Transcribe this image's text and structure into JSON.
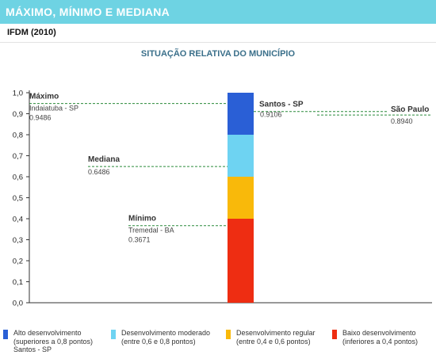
{
  "header": {
    "title": "MÁXIMO, MÍNIMO E MEDIANA"
  },
  "subheader": {
    "label": "IFDM (2010)"
  },
  "chart_data": {
    "type": "bar",
    "title": "SITUAÇÃO RELATIVA DO MUNICÍPIO",
    "ylim": [
      0,
      1
    ],
    "yticks": [
      "0,0",
      "0,1",
      "0,2",
      "0,3",
      "0,4",
      "0,5",
      "0,6",
      "0,7",
      "0,8",
      "0,9",
      "1,0"
    ],
    "bands": [
      {
        "from": 0.0,
        "to": 0.4,
        "color": "#ee2d12"
      },
      {
        "from": 0.4,
        "to": 0.6,
        "color": "#f9b90a"
      },
      {
        "from": 0.6,
        "to": 0.8,
        "color": "#6ed3f2"
      },
      {
        "from": 0.8,
        "to": 1.0,
        "color": "#2a5fd6"
      }
    ],
    "markers": [
      {
        "label": "Máximo",
        "sub": "Indaiatuba - SP",
        "value_text": "0.9486",
        "value": 0.9486,
        "side": "left"
      },
      {
        "label": "Mediana",
        "sub": "",
        "value_text": "0.6486",
        "value": 0.6486,
        "side": "left"
      },
      {
        "label": "Mínimo",
        "sub": "Tremedal - BA",
        "value_text": "0.3671",
        "value": 0.3671,
        "side": "left"
      },
      {
        "label": "Santos - SP",
        "sub": "",
        "value_text": "0.9106",
        "value": 0.9106,
        "side": "right"
      },
      {
        "label": "São Paulo",
        "sub": "",
        "value_text": "0.8940",
        "value": 0.894,
        "side": "far-right"
      }
    ]
  },
  "legend": {
    "items": [
      {
        "color": "#2a5fd6",
        "line1": "Alto desenvolvimento",
        "line2": "(superiores a 0,8 pontos)"
      },
      {
        "color": "#6ed3f2",
        "line1": "Desenvolvimento moderado",
        "line2": "(entre 0,6 e 0,8 pontos)"
      },
      {
        "color": "#f9b90a",
        "line1": "Desenvolvimento regular",
        "line2": "(entre 0,4 e 0,6 pontos)"
      },
      {
        "color": "#ee2d12",
        "line1": "Baixo desenvolvimento",
        "line2": "(inferiores a 0,4 pontos)"
      }
    ],
    "footer": "Santos - SP"
  }
}
